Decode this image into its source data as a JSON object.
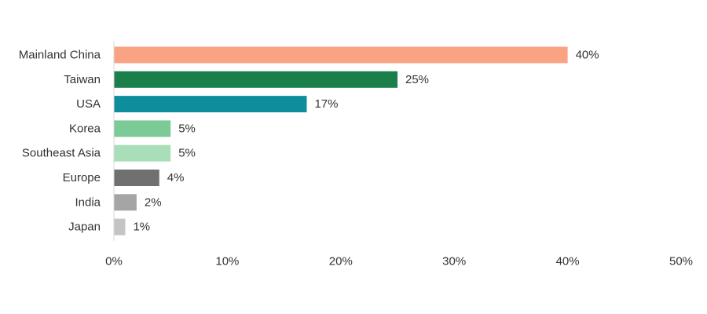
{
  "chart_data": {
    "type": "bar",
    "orientation": "horizontal",
    "title": "",
    "xlabel": "",
    "ylabel": "",
    "xlim": [
      0,
      50
    ],
    "tick_values": [
      0,
      10,
      20,
      30,
      40,
      50
    ],
    "tick_labels": [
      "0%",
      "10%",
      "20%",
      "30%",
      "40%",
      "50%"
    ],
    "grid": false,
    "legend": "none",
    "categories": [
      "Mainland China",
      "Taiwan",
      "USA",
      "Korea",
      "Southeast Asia",
      "Europe",
      "India",
      "Japan"
    ],
    "values": [
      40,
      25,
      17,
      5,
      5,
      4,
      2,
      1
    ],
    "value_labels": [
      "40%",
      "25%",
      "17%",
      "5%",
      "5%",
      "4%",
      "2%",
      "1%"
    ],
    "colors": [
      "#f9a382",
      "#1a7f4b",
      "#0e8e9c",
      "#7ccb96",
      "#a8dfb9",
      "#707070",
      "#a5a5a5",
      "#c4c4c4"
    ]
  }
}
